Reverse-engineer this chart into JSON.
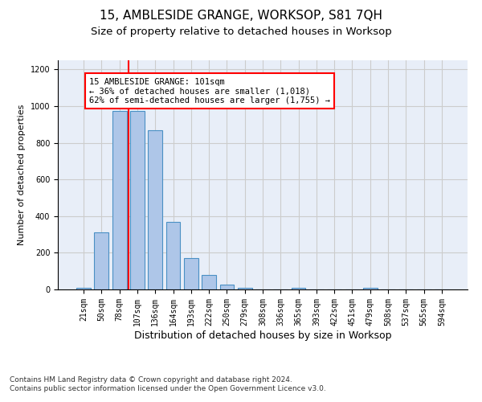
{
  "title": "15, AMBLESIDE GRANGE, WORKSOP, S81 7QH",
  "subtitle": "Size of property relative to detached houses in Worksop",
  "xlabel": "Distribution of detached houses by size in Worksop",
  "ylabel": "Number of detached properties",
  "categories": [
    "21sqm",
    "50sqm",
    "78sqm",
    "107sqm",
    "136sqm",
    "164sqm",
    "193sqm",
    "222sqm",
    "250sqm",
    "279sqm",
    "308sqm",
    "336sqm",
    "365sqm",
    "393sqm",
    "422sqm",
    "451sqm",
    "479sqm",
    "508sqm",
    "537sqm",
    "565sqm",
    "594sqm"
  ],
  "values": [
    10,
    310,
    975,
    975,
    870,
    370,
    170,
    80,
    25,
    10,
    0,
    0,
    10,
    0,
    0,
    0,
    10,
    0,
    0,
    0,
    0
  ],
  "bar_color": "#aec6e8",
  "bar_edge_color": "#4a90c4",
  "bar_linewidth": 0.8,
  "vline_color": "red",
  "vline_linewidth": 1.5,
  "vline_x": 2.5,
  "annotation_text": "15 AMBLESIDE GRANGE: 101sqm\n← 36% of detached houses are smaller (1,018)\n62% of semi-detached houses are larger (1,755) →",
  "annotation_box_color": "white",
  "annotation_box_edge_color": "red",
  "ylim": [
    0,
    1250
  ],
  "yticks": [
    0,
    200,
    400,
    600,
    800,
    1000,
    1200
  ],
  "grid_color": "#cccccc",
  "bg_color": "#e8eef8",
  "footer_text": "Contains HM Land Registry data © Crown copyright and database right 2024.\nContains public sector information licensed under the Open Government Licence v3.0.",
  "title_fontsize": 11,
  "subtitle_fontsize": 9.5,
  "xlabel_fontsize": 9,
  "ylabel_fontsize": 8,
  "tick_fontsize": 7,
  "annotation_fontsize": 7.5,
  "footer_fontsize": 6.5
}
